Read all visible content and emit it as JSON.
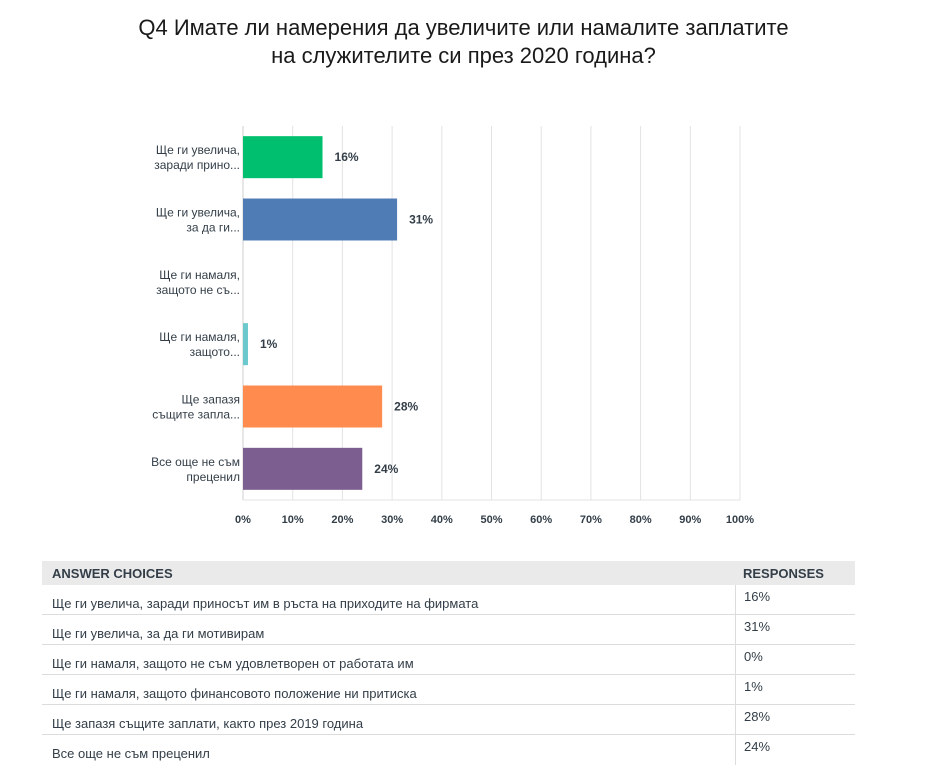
{
  "title_lines": [
    "Q4 Имате ли намерения да увеличите или намалите заплатите",
    "на служителите си през 2020 година?"
  ],
  "chart_data": {
    "type": "bar",
    "orientation": "horizontal",
    "categories": [
      [
        "Ще ги увелича,",
        "заради прино..."
      ],
      [
        "Ще ги увелича,",
        "за да ги..."
      ],
      [
        "Ще ги намаля,",
        "защото не съ..."
      ],
      [
        "Ще ги намаля,",
        "защото..."
      ],
      [
        "Ще запазя",
        "същите запла..."
      ],
      [
        "Все още не съм",
        "преценил"
      ]
    ],
    "values": [
      16,
      31,
      0,
      1,
      28,
      24
    ],
    "value_labels": [
      "16%",
      "31%",
      "",
      "1%",
      "28%",
      "24%"
    ],
    "colors": [
      "#00bf6f",
      "#507cb6",
      "#f9be00",
      "#6bc8cd",
      "#ff8b4f",
      "#7d5e90"
    ],
    "xlim": [
      0,
      100
    ],
    "x_ticks": [
      0,
      10,
      20,
      30,
      40,
      50,
      60,
      70,
      80,
      90,
      100
    ],
    "x_tick_labels": [
      "0%",
      "10%",
      "20%",
      "30%",
      "40%",
      "50%",
      "60%",
      "70%",
      "80%",
      "90%",
      "100%"
    ],
    "grid": true
  },
  "table": {
    "headers": [
      "ANSWER CHOICES",
      "RESPONSES"
    ],
    "rows": [
      {
        "choice": "Ще ги увелича, заради приносът им в ръста на приходите на фирмата",
        "response": "16%"
      },
      {
        "choice": "Ще ги увелича, за да ги мотивирам",
        "response": "31%"
      },
      {
        "choice": "Ще ги намаля, защото не съм удовлетворен от работата им",
        "response": "0%"
      },
      {
        "choice": "Ще ги намаля, защото финансовото положение ни притиска",
        "response": "1%"
      },
      {
        "choice": "Ще запазя същите заплати, както през 2019 година",
        "response": "28%"
      },
      {
        "choice": "Все още не съм преценил",
        "response": "24%"
      }
    ]
  }
}
